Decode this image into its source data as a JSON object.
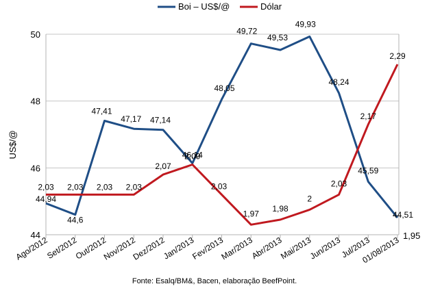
{
  "chart_data": {
    "type": "line",
    "ylabel": "US$/@",
    "categories": [
      "Ago/2012",
      "Set/2012",
      "Out/2012",
      "Nov/2012",
      "Dez/2012",
      "Jan/2013",
      "Fev/2013",
      "Mar/2013",
      "Abr/2013",
      "Mai/2013",
      "Jun/2013",
      "Jul/2013",
      "01/08/2013"
    ],
    "left_axis": {
      "min": 44,
      "max": 50,
      "ticks": [
        "44",
        "46",
        "48",
        "50"
      ]
    },
    "right_axis": {
      "min": 1.95,
      "max": 2.35,
      "ticks": [
        "1,95"
      ]
    },
    "grid": true,
    "legend_position": "top-center",
    "series": [
      {
        "name": "Boi – US$/@",
        "color": "#1f4e86",
        "axis": "left",
        "values": [
          44.94,
          44.6,
          47.41,
          47.17,
          47.14,
          46.14,
          48.05,
          49.72,
          49.53,
          49.93,
          48.24,
          45.59,
          44.51
        ],
        "labels": [
          "44,94",
          "44,6",
          "47,41",
          "47,17",
          "47,14",
          "46,14",
          "48,05",
          "49,72",
          "49,53",
          "49,93",
          "48,24",
          "45,59",
          "44,51"
        ]
      },
      {
        "name": "Dólar",
        "color": "#c0191f",
        "axis": "right",
        "values": [
          2.03,
          2.03,
          2.03,
          2.03,
          2.07,
          2.09,
          2.03,
          1.97,
          1.98,
          2.0,
          2.03,
          2.17,
          2.29
        ],
        "labels": [
          "2,03",
          "2,03",
          "2,03",
          "2,03",
          "2,07",
          "2,09",
          "2,03",
          "1,97",
          "1,98",
          "2",
          "2,03",
          "2,17",
          "2,29"
        ]
      }
    ],
    "source": "Fonte: Esalq/BM&, Bacen, elaboração BeefPoint."
  }
}
